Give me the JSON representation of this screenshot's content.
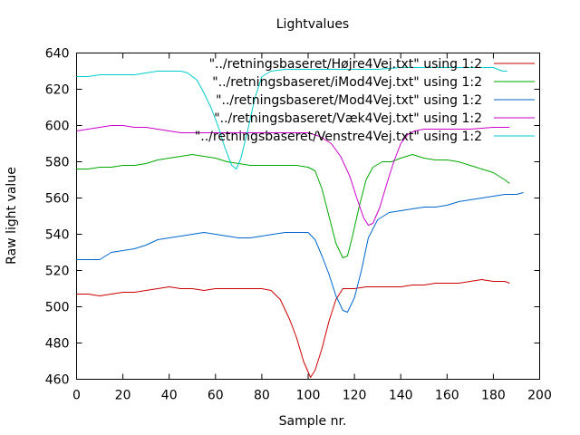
{
  "chart_data": {
    "type": "line",
    "title": "Lightvalues",
    "xlabel": "Sample nr.",
    "ylabel": "Raw light value",
    "xlim": [
      0,
      200
    ],
    "ylim": [
      460,
      640
    ],
    "xticks": [
      "0",
      "20",
      "40",
      "60",
      "80",
      "100",
      "120",
      "140",
      "160",
      "180",
      "200"
    ],
    "yticks": [
      "460",
      "480",
      "500",
      "520",
      "540",
      "560",
      "580",
      "600",
      "620",
      "640"
    ],
    "grid": false,
    "legend_position": "top-right",
    "series": [
      {
        "name": "\"../retningsbaseret/Højre4Vej.txt\" using 1:2",
        "color": "#cc0000",
        "points": [
          [
            0,
            507
          ],
          [
            5,
            507
          ],
          [
            10,
            506
          ],
          [
            15,
            507
          ],
          [
            20,
            508
          ],
          [
            25,
            508
          ],
          [
            30,
            509
          ],
          [
            35,
            510
          ],
          [
            40,
            511
          ],
          [
            45,
            510
          ],
          [
            50,
            510
          ],
          [
            55,
            509
          ],
          [
            60,
            510
          ],
          [
            65,
            510
          ],
          [
            70,
            510
          ],
          [
            75,
            510
          ],
          [
            80,
            510
          ],
          [
            84,
            509
          ],
          [
            88,
            504
          ],
          [
            92,
            493
          ],
          [
            95,
            483
          ],
          [
            98,
            470
          ],
          [
            101,
            461
          ],
          [
            103,
            465
          ],
          [
            106,
            477
          ],
          [
            109,
            492
          ],
          [
            112,
            504
          ],
          [
            115,
            510
          ],
          [
            120,
            510
          ],
          [
            125,
            511
          ],
          [
            130,
            511
          ],
          [
            135,
            511
          ],
          [
            140,
            511
          ],
          [
            145,
            512
          ],
          [
            150,
            512
          ],
          [
            155,
            513
          ],
          [
            160,
            513
          ],
          [
            165,
            513
          ],
          [
            170,
            514
          ],
          [
            175,
            515
          ],
          [
            180,
            514
          ],
          [
            185,
            514
          ],
          [
            187,
            513
          ]
        ]
      },
      {
        "name": "\"../retningsbaseret/iMod4Vej.txt\" using 1:2",
        "color": "#00aa00",
        "points": [
          [
            0,
            576
          ],
          [
            5,
            576
          ],
          [
            10,
            577
          ],
          [
            15,
            577
          ],
          [
            20,
            578
          ],
          [
            25,
            578
          ],
          [
            30,
            579
          ],
          [
            35,
            581
          ],
          [
            40,
            582
          ],
          [
            45,
            583
          ],
          [
            50,
            584
          ],
          [
            55,
            583
          ],
          [
            60,
            582
          ],
          [
            65,
            580
          ],
          [
            70,
            579
          ],
          [
            75,
            578
          ],
          [
            80,
            578
          ],
          [
            85,
            578
          ],
          [
            90,
            578
          ],
          [
            95,
            578
          ],
          [
            100,
            577
          ],
          [
            103,
            575
          ],
          [
            106,
            565
          ],
          [
            109,
            550
          ],
          [
            112,
            535
          ],
          [
            115,
            527
          ],
          [
            117,
            528
          ],
          [
            119,
            538
          ],
          [
            122,
            555
          ],
          [
            125,
            570
          ],
          [
            128,
            577
          ],
          [
            132,
            580
          ],
          [
            136,
            580
          ],
          [
            140,
            582
          ],
          [
            145,
            584
          ],
          [
            150,
            582
          ],
          [
            155,
            581
          ],
          [
            160,
            581
          ],
          [
            165,
            580
          ],
          [
            170,
            578
          ],
          [
            175,
            576
          ],
          [
            180,
            574
          ],
          [
            185,
            570
          ],
          [
            187,
            568
          ]
        ]
      },
      {
        "name": "\"../retningsbaseret/Mod4Vej.txt\" using 1:2",
        "color": "#0066cc",
        "points": [
          [
            0,
            526
          ],
          [
            5,
            526
          ],
          [
            10,
            526
          ],
          [
            15,
            530
          ],
          [
            20,
            531
          ],
          [
            25,
            532
          ],
          [
            30,
            534
          ],
          [
            35,
            537
          ],
          [
            40,
            538
          ],
          [
            45,
            539
          ],
          [
            50,
            540
          ],
          [
            55,
            541
          ],
          [
            60,
            540
          ],
          [
            65,
            539
          ],
          [
            70,
            538
          ],
          [
            75,
            538
          ],
          [
            80,
            539
          ],
          [
            85,
            540
          ],
          [
            90,
            541
          ],
          [
            95,
            541
          ],
          [
            100,
            541
          ],
          [
            103,
            537
          ],
          [
            106,
            528
          ],
          [
            109,
            518
          ],
          [
            112,
            506
          ],
          [
            115,
            498
          ],
          [
            117,
            497
          ],
          [
            120,
            505
          ],
          [
            123,
            520
          ],
          [
            126,
            538
          ],
          [
            130,
            548
          ],
          [
            135,
            552
          ],
          [
            140,
            553
          ],
          [
            145,
            554
          ],
          [
            150,
            555
          ],
          [
            155,
            555
          ],
          [
            160,
            556
          ],
          [
            165,
            558
          ],
          [
            170,
            559
          ],
          [
            175,
            560
          ],
          [
            180,
            561
          ],
          [
            185,
            562
          ],
          [
            190,
            562
          ],
          [
            193,
            563
          ]
        ]
      },
      {
        "name": "\"../retningsbaseret/Væk4Vej.txt\" using 1:2",
        "color": "#cc00cc",
        "points": [
          [
            0,
            597
          ],
          [
            5,
            598
          ],
          [
            10,
            599
          ],
          [
            15,
            600
          ],
          [
            20,
            600
          ],
          [
            25,
            599
          ],
          [
            30,
            599
          ],
          [
            35,
            598
          ],
          [
            40,
            597
          ],
          [
            45,
            596
          ],
          [
            50,
            596
          ],
          [
            55,
            596
          ],
          [
            60,
            596
          ],
          [
            70,
            596
          ],
          [
            80,
            596
          ],
          [
            90,
            596
          ],
          [
            100,
            596
          ],
          [
            105,
            594
          ],
          [
            110,
            590
          ],
          [
            114,
            583
          ],
          [
            118,
            572
          ],
          [
            121,
            560
          ],
          [
            124,
            549
          ],
          [
            126,
            545
          ],
          [
            128,
            546
          ],
          [
            131,
            555
          ],
          [
            134,
            568
          ],
          [
            137,
            580
          ],
          [
            140,
            590
          ],
          [
            143,
            595
          ],
          [
            146,
            597
          ],
          [
            150,
            598
          ],
          [
            160,
            598
          ],
          [
            170,
            598
          ],
          [
            180,
            599
          ],
          [
            185,
            599
          ],
          [
            187,
            599
          ]
        ]
      },
      {
        "name": "\"../retningsbaseret/Venstre4Vej.txt\" using 1:2",
        "color": "#00cccc",
        "points": [
          [
            0,
            627
          ],
          [
            5,
            627
          ],
          [
            10,
            628
          ],
          [
            15,
            628
          ],
          [
            20,
            628
          ],
          [
            25,
            628
          ],
          [
            30,
            629
          ],
          [
            35,
            630
          ],
          [
            40,
            630
          ],
          [
            45,
            630
          ],
          [
            48,
            629
          ],
          [
            52,
            625
          ],
          [
            55,
            618
          ],
          [
            58,
            610
          ],
          [
            61,
            600
          ],
          [
            64,
            588
          ],
          [
            67,
            578
          ],
          [
            69,
            576
          ],
          [
            71,
            582
          ],
          [
            74,
            598
          ],
          [
            77,
            615
          ],
          [
            80,
            627
          ],
          [
            84,
            630
          ],
          [
            90,
            631
          ],
          [
            100,
            631
          ],
          [
            110,
            631
          ],
          [
            120,
            631
          ],
          [
            130,
            631
          ],
          [
            140,
            632
          ],
          [
            150,
            632
          ],
          [
            160,
            632
          ],
          [
            170,
            632
          ],
          [
            180,
            632
          ],
          [
            184,
            630
          ],
          [
            186,
            630
          ]
        ]
      }
    ]
  }
}
